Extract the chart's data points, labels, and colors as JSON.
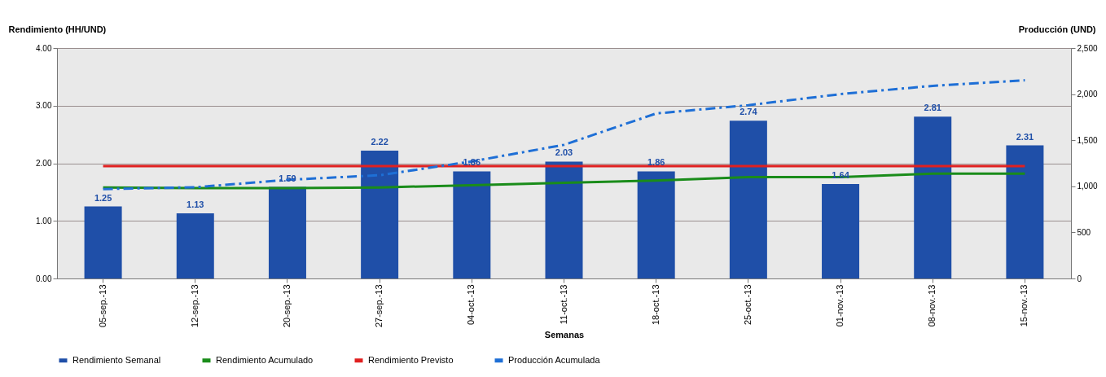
{
  "chart_data": {
    "type": "bar",
    "xlabel": "Semanas",
    "ylabel": "Rendimiento (HH/UND)",
    "y2label": "Producción (UND)",
    "categories": [
      "05-sep.-13",
      "12-sep.-13",
      "20-sep.-13",
      "27-sep.-13",
      "04-oct.-13",
      "11-oct.-13",
      "18-oct.-13",
      "25-oct.-13",
      "01-nov.-13",
      "08-nov.-13",
      "15-nov.-13"
    ],
    "series": [
      {
        "name": "Rendimiento Semanal",
        "color": "#1f4fa8",
        "values": [
          1.25,
          1.13,
          1.59,
          2.22,
          1.86,
          2.03,
          1.86,
          2.74,
          1.64,
          2.81,
          2.31
        ],
        "value_labels": [
          "1.25",
          "1.13",
          "1.59",
          "2.22",
          "1.86",
          "2.03",
          "1.86",
          "2.74",
          "1.64",
          "2.81",
          "2.31"
        ]
      },
      {
        "name": "Rendimiento Acumulado",
        "type": "line",
        "color": "#1a8c1a",
        "values": [
          1.58,
          1.57,
          1.57,
          1.58,
          1.62,
          1.66,
          1.7,
          1.76,
          1.76,
          1.82,
          1.82
        ]
      },
      {
        "name": "Rendimiento Previsto",
        "type": "line",
        "color": "#e02020",
        "values": [
          1.95,
          1.95,
          1.95,
          1.95,
          1.95,
          1.95,
          1.95,
          1.95,
          1.95,
          1.95,
          1.95
        ]
      },
      {
        "name": "Producción Acumulada",
        "type": "line",
        "color": "#1e6fd6",
        "axis": "y2",
        "line_style": "dashed",
        "values": [
          970,
          990,
          1070,
          1120,
          1270,
          1450,
          1790,
          1880,
          2000,
          2090,
          2150
        ]
      }
    ],
    "ylim": [
      0,
      4
    ],
    "yticks": [
      {
        "value": 0,
        "label": "0.00"
      },
      {
        "value": 1,
        "label": "1.00"
      },
      {
        "value": 2,
        "label": "2.00"
      },
      {
        "value": 3,
        "label": "3.00"
      },
      {
        "value": 4,
        "label": "4.00"
      }
    ],
    "y2lim": [
      0,
      2500
    ],
    "y2ticks": [
      0,
      500,
      {
        "value": 1000,
        "label": "1,000"
      },
      {
        "value": 1500,
        "label": "1,500"
      },
      {
        "value": 2000,
        "label": "2,000"
      },
      {
        "value": 2500,
        "label": "2,500"
      }
    ],
    "grid": "y",
    "legend": "bottom"
  }
}
